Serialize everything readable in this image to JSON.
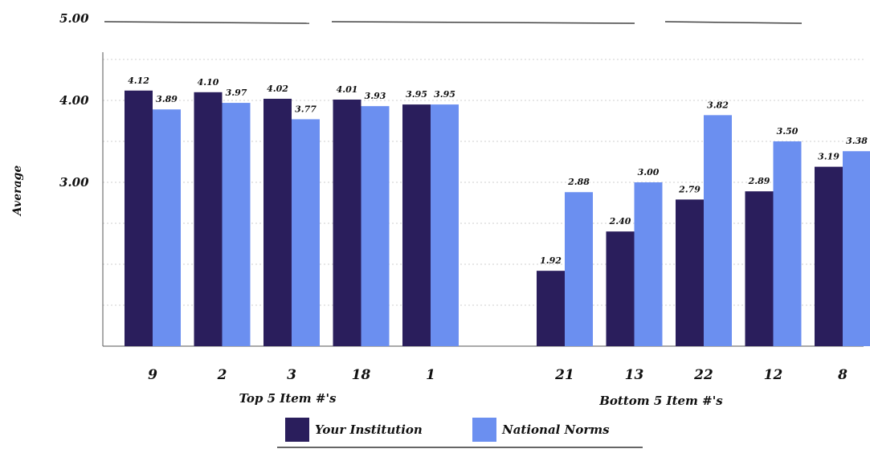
{
  "chart_data": {
    "type": "bar",
    "ylabel": "Average",
    "y_ticks": [
      "5.00",
      "4.00",
      "3.00"
    ],
    "y_tick_values": [
      5.0,
      4.0,
      3.0
    ],
    "ylim": [
      1.0,
      5.0
    ],
    "grid": true,
    "legend_placement": "bottom-center",
    "groups": [
      {
        "label": "Top 5 Item #'s",
        "categories": [
          "9",
          "2",
          "3",
          "18",
          "1"
        ],
        "series": [
          {
            "name": "Your Institution",
            "values": [
              4.12,
              4.1,
              4.02,
              4.01,
              3.95
            ]
          },
          {
            "name": "National Norms",
            "values": [
              3.89,
              3.97,
              3.77,
              3.93,
              3.95
            ]
          }
        ]
      },
      {
        "label": "Bottom 5 Item #'s",
        "categories": [
          "21",
          "13",
          "22",
          "12",
          "8"
        ],
        "series": [
          {
            "name": "Your Institution",
            "values": [
              1.92,
              2.4,
              2.79,
              2.89,
              3.19
            ]
          },
          {
            "name": "National Norms",
            "values": [
              2.88,
              3.0,
              3.82,
              3.5,
              3.38
            ]
          }
        ]
      }
    ],
    "legend": [
      {
        "name": "Your Institution",
        "color": "#2a1e5c"
      },
      {
        "name": "National Norms",
        "color": "#6b8ff0"
      }
    ]
  }
}
